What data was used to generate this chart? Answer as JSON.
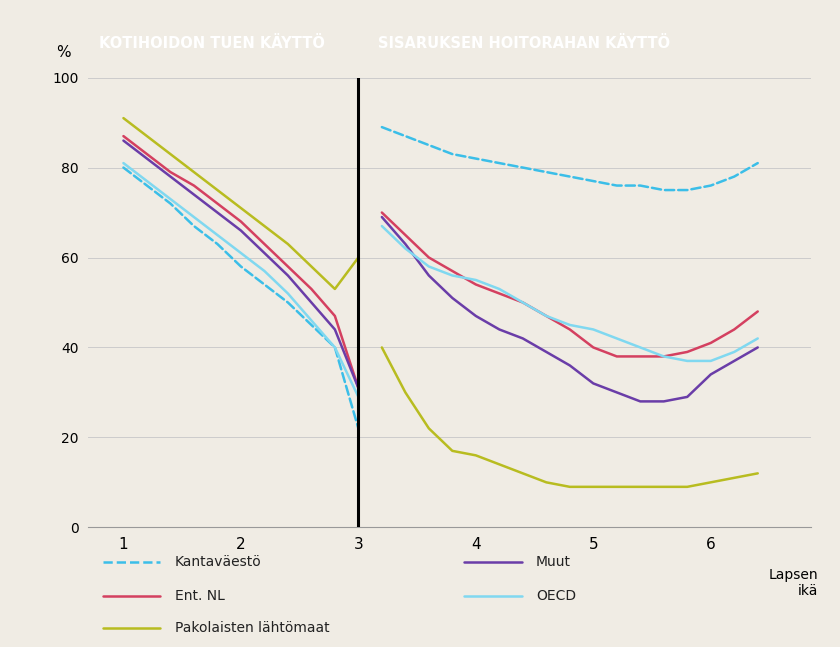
{
  "background_color": "#f0ece4",
  "header_color": "#29aad4",
  "header_text_color": "#ffffff",
  "header_left": "KOTIHOIDON TUEN KÄYTTÖ",
  "header_right": "SISARUKSEN HOITORAHAN KÄYTTÖ",
  "ylabel": "%",
  "xlabel": "Lapsen\nikä",
  "ylim": [
    0,
    100
  ],
  "yticks": [
    0,
    20,
    40,
    60,
    80,
    100
  ],
  "xticks": [
    1,
    2,
    3,
    4,
    5,
    6
  ],
  "divider_x": 3,
  "series": {
    "Kantaväestö": {
      "color": "#3bbee8",
      "linestyle": "dashed",
      "linewidth": 1.8,
      "x": [
        1,
        1.2,
        1.4,
        1.6,
        1.8,
        2.0,
        2.2,
        2.4,
        2.6,
        2.8,
        3.0,
        3.2,
        3.4,
        3.6,
        3.8,
        4.0,
        4.2,
        4.4,
        4.6,
        4.8,
        5.0,
        5.2,
        5.4,
        5.6,
        5.8,
        6.0,
        6.2,
        6.4
      ],
      "y": [
        80,
        76,
        72,
        67,
        63,
        58,
        54,
        50,
        45,
        40,
        22,
        89,
        87,
        85,
        83,
        82,
        81,
        80,
        79,
        78,
        77,
        76,
        76,
        75,
        75,
        76,
        78,
        81
      ]
    },
    "Ent. NL": {
      "color": "#d44060",
      "linestyle": "solid",
      "linewidth": 1.8,
      "x": [
        1,
        1.2,
        1.4,
        1.6,
        1.8,
        2.0,
        2.2,
        2.4,
        2.6,
        2.8,
        3.0,
        3.2,
        3.4,
        3.6,
        3.8,
        4.0,
        4.2,
        4.4,
        4.6,
        4.8,
        5.0,
        5.2,
        5.4,
        5.6,
        5.8,
        6.0,
        6.2,
        6.4
      ],
      "y": [
        87,
        83,
        79,
        76,
        72,
        68,
        63,
        58,
        53,
        47,
        31,
        70,
        65,
        60,
        57,
        54,
        52,
        50,
        47,
        44,
        40,
        38,
        38,
        38,
        39,
        41,
        44,
        48
      ]
    },
    "Pakolaisten lähtömaat": {
      "color": "#b8bc20",
      "linestyle": "solid",
      "linewidth": 1.8,
      "x": [
        1,
        1.2,
        1.4,
        1.6,
        1.8,
        2.0,
        2.2,
        2.4,
        2.6,
        2.8,
        3.0,
        3.2,
        3.4,
        3.6,
        3.8,
        4.0,
        4.2,
        4.4,
        4.6,
        4.8,
        5.0,
        5.2,
        5.4,
        5.6,
        5.8,
        6.0,
        6.2,
        6.4
      ],
      "y": [
        91,
        87,
        83,
        79,
        75,
        71,
        67,
        63,
        58,
        53,
        60,
        40,
        30,
        22,
        17,
        16,
        14,
        12,
        10,
        9,
        9,
        9,
        9,
        9,
        9,
        10,
        11,
        12
      ]
    },
    "Muut": {
      "color": "#6a3da8",
      "linestyle": "solid",
      "linewidth": 1.8,
      "x": [
        1,
        1.2,
        1.4,
        1.6,
        1.8,
        2.0,
        2.2,
        2.4,
        2.6,
        2.8,
        3.0,
        3.2,
        3.4,
        3.6,
        3.8,
        4.0,
        4.2,
        4.4,
        4.6,
        4.8,
        5.0,
        5.2,
        5.4,
        5.6,
        5.8,
        6.0,
        6.2,
        6.4
      ],
      "y": [
        86,
        82,
        78,
        74,
        70,
        66,
        61,
        56,
        50,
        44,
        31,
        69,
        63,
        56,
        51,
        47,
        44,
        42,
        39,
        36,
        32,
        30,
        28,
        28,
        29,
        34,
        37,
        40
      ]
    },
    "OECD": {
      "color": "#80d8f0",
      "linestyle": "solid",
      "linewidth": 1.8,
      "x": [
        1,
        1.2,
        1.4,
        1.6,
        1.8,
        2.0,
        2.2,
        2.4,
        2.6,
        2.8,
        3.0,
        3.2,
        3.4,
        3.6,
        3.8,
        4.0,
        4.2,
        4.4,
        4.6,
        4.8,
        5.0,
        5.2,
        5.4,
        5.6,
        5.8,
        6.0,
        6.2,
        6.4
      ],
      "y": [
        81,
        77,
        73,
        69,
        65,
        61,
        57,
        52,
        46,
        40,
        29,
        67,
        62,
        58,
        56,
        55,
        53,
        50,
        47,
        45,
        44,
        42,
        40,
        38,
        37,
        37,
        39,
        42
      ]
    }
  }
}
